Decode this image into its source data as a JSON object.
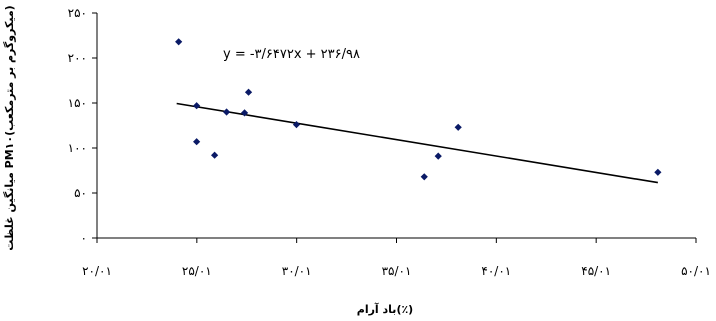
{
  "chart_data": {
    "type": "scatter",
    "xlabel": "باد آرام(٪)",
    "ylabel": "میانگین غلظت PM۱۰(میکروگرم بر مترمکعب)",
    "xlim": [
      20.01,
      50.01
    ],
    "ylim": [
      0,
      250
    ],
    "x_ticks": [
      20.01,
      25.01,
      30.01,
      35.01,
      40.01,
      45.01,
      50.01
    ],
    "x_tick_labels": [
      "۲۰/۰۱",
      "۲۵/۰۱",
      "۳۰/۰۱",
      "۳۵/۰۱",
      "۴۰/۰۱",
      "۴۵/۰۱",
      "۵۰/۰۱"
    ],
    "y_ticks": [
      0,
      50,
      100,
      150,
      200,
      250
    ],
    "y_tick_labels": [
      "۰",
      "۵۰",
      "۱۰۰",
      "۱۵۰",
      "۲۰۰",
      "۲۵۰"
    ],
    "x": [
      24.1,
      25.0,
      25.0,
      25.9,
      26.5,
      27.4,
      27.6,
      30.0,
      36.4,
      37.1,
      38.1,
      48.1
    ],
    "y": [
      218,
      147,
      107,
      92,
      140,
      139,
      162,
      126,
      68,
      91,
      123,
      73
    ],
    "trendline": {
      "equation": "y = -۳/۶۴۷۲x + ۲۳۶/۹۸",
      "x": [
        24.0,
        48.1
      ],
      "y": [
        149.45,
        61.56
      ]
    },
    "colors": {
      "points": "#0a1a66",
      "line": "#000000"
    },
    "grid": false,
    "legend": "none"
  }
}
